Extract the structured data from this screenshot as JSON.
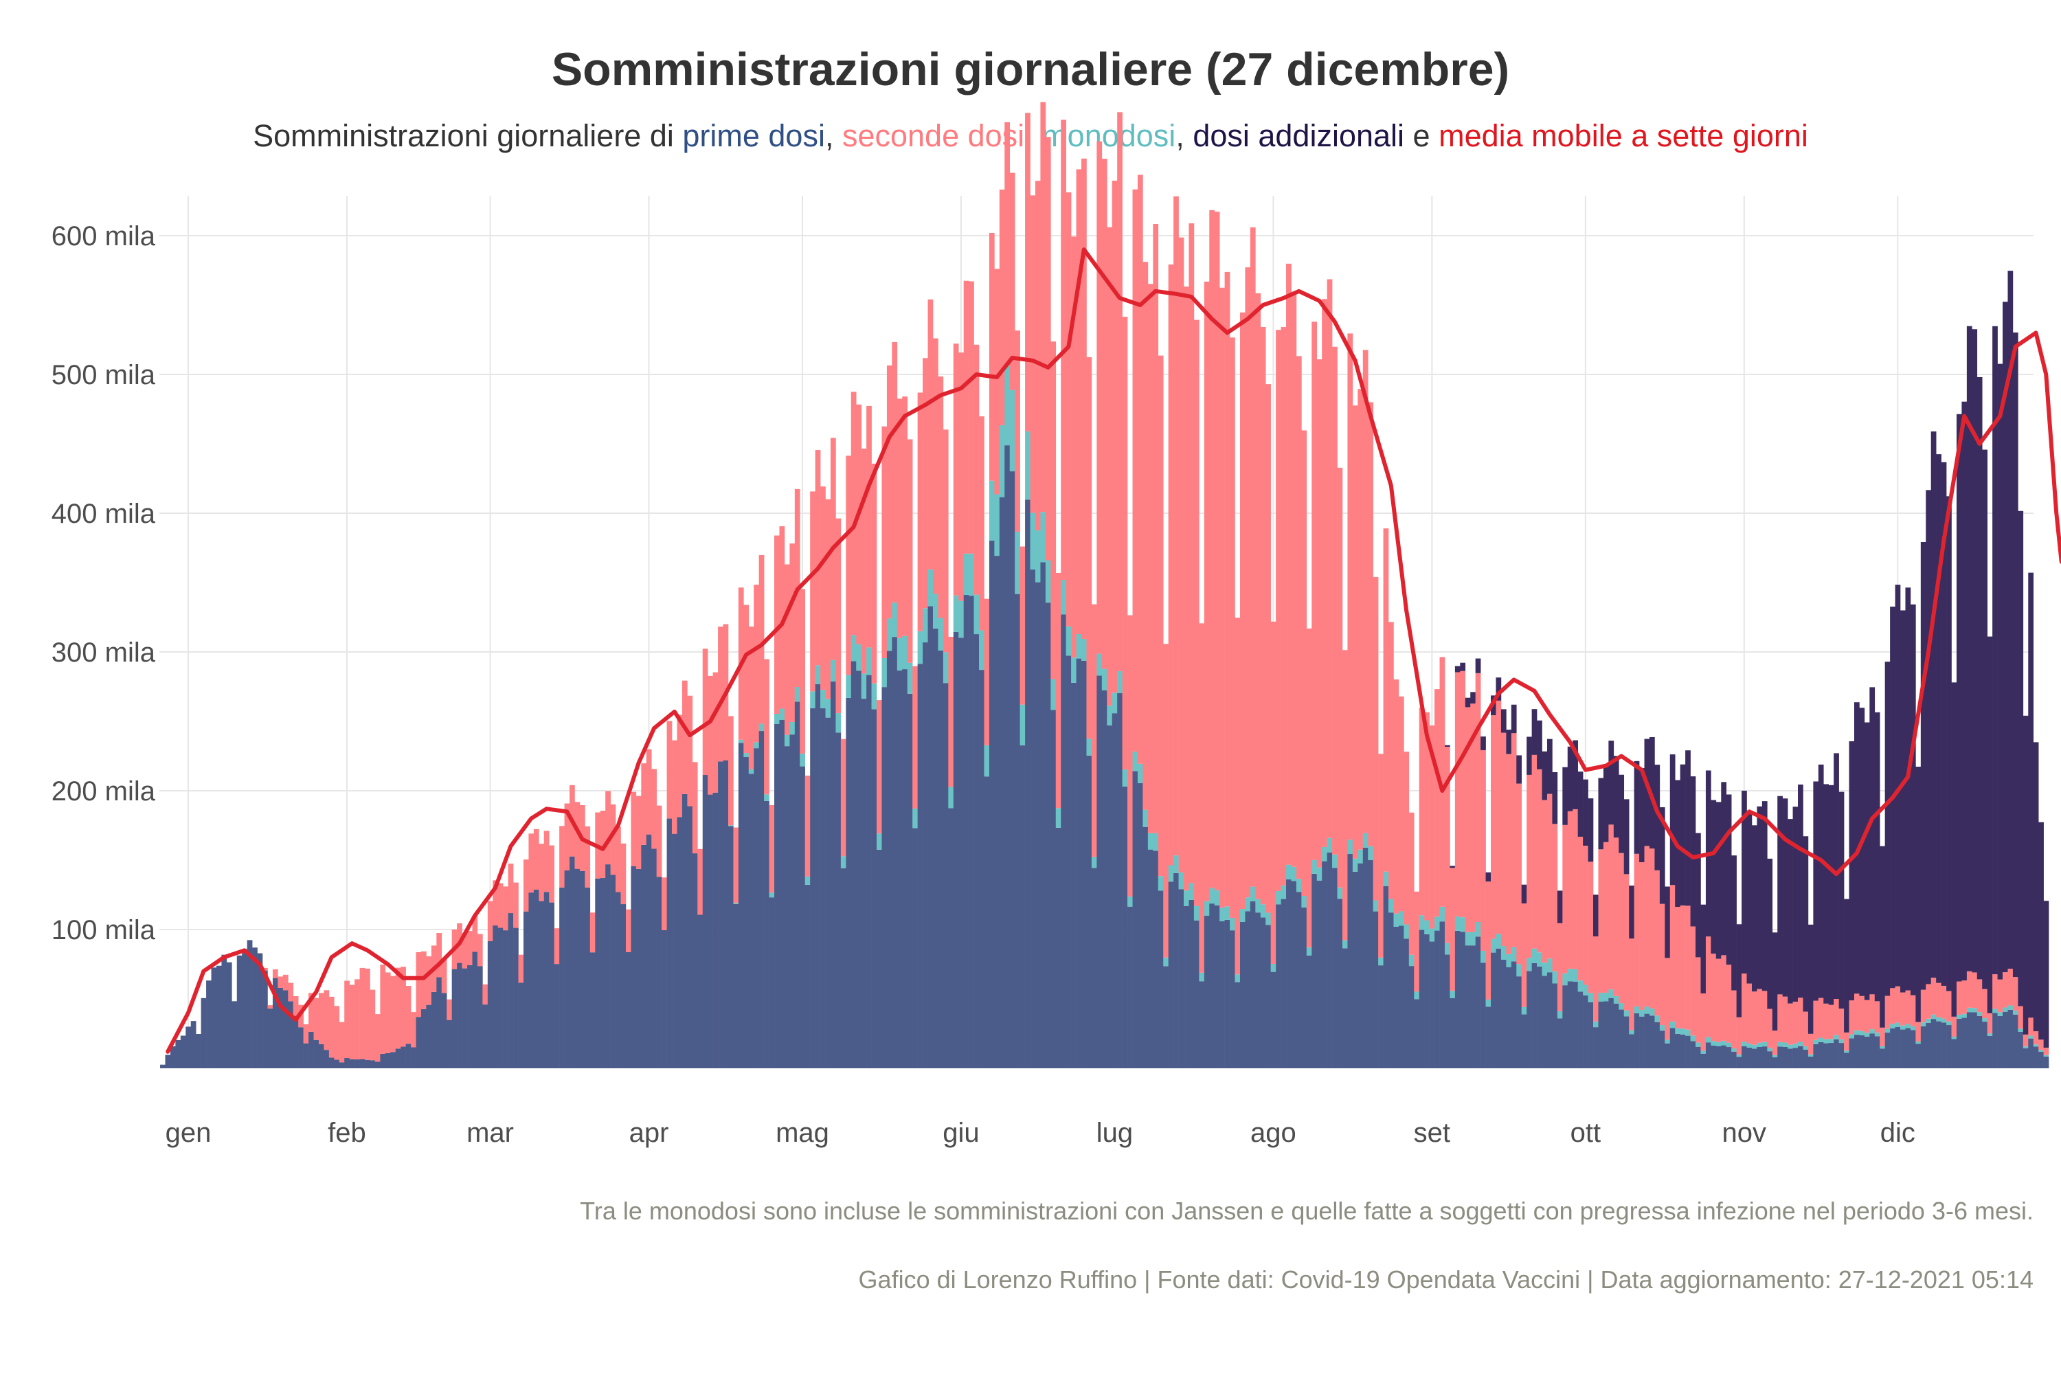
{
  "title": "Somministrazioni giornaliere (27 dicembre)",
  "subtitle": {
    "prefix": "Somministrazioni giornaliere di ",
    "prime": "prime dosi",
    "sep1": ", ",
    "seconde": "seconde dosi",
    "sep2": ", ",
    "monodosi": "monodosi",
    "sep3": ", ",
    "addizionali": "dosi addizionali",
    "and": " e ",
    "media": "media mobile a sette giorni"
  },
  "caption_note": "Tra le monodosi sono incluse le somministrazioni con Janssen e quelle fatte a soggetti con pregressa infezione nel periodo 3-6 mesi.",
  "caption_source": "Gafico di Lorenzo Ruffino | Fonte dati: Covid-19 Opendata Vaccini | Data aggiornamento: 27-12-2021 05:14",
  "colors": {
    "prime": "#4c5c8a",
    "seconde": "#ff8084",
    "monodosi": "#6cc3c6",
    "addizionali": "#3a2c5e",
    "media": "#e0242f",
    "grid": "#e6e6e6",
    "text": "#4d4d4d"
  },
  "chart_data": {
    "type": "bar",
    "stacked": true,
    "note": "Daily stacked bars (one per day, 27 Dec 2020 - 26 Dec 2021) plus 7-day moving average line; values are visual estimates in thousands",
    "units": "mila",
    "ylim": [
      0,
      630
    ],
    "yticks": [
      100,
      200,
      300,
      400,
      500,
      600
    ],
    "ytick_labels": [
      "100 mila",
      "200 mila",
      "300 mila",
      "400 mila",
      "500 mila",
      "600 mila"
    ],
    "months": [
      "gen",
      "feb",
      "mar",
      "apr",
      "mag",
      "giu",
      "lug",
      "ago",
      "set",
      "ott",
      "nov",
      "dic"
    ],
    "grid": true,
    "legend": "subtitle",
    "series_names": [
      "prime dosi",
      "seconde dosi",
      "monodosi",
      "dosi addizionali",
      "media mobile a sette giorni"
    ],
    "anchors": {
      "first_dose": [
        [
          -5,
          5
        ],
        [
          -3,
          15
        ],
        [
          0,
          30
        ],
        [
          7,
          85
        ],
        [
          14,
          88
        ],
        [
          21,
          40
        ],
        [
          28,
          8
        ],
        [
          35,
          6
        ],
        [
          42,
          15
        ],
        [
          49,
          62
        ],
        [
          56,
          80
        ],
        [
          63,
          110
        ],
        [
          70,
          130
        ],
        [
          77,
          150
        ],
        [
          84,
          135
        ],
        [
          91,
          165
        ],
        [
          98,
          190
        ],
        [
          105,
          215
        ],
        [
          112,
          230
        ],
        [
          119,
          250
        ],
        [
          126,
          270
        ],
        [
          133,
          285
        ],
        [
          140,
          300
        ],
        [
          147,
          320
        ],
        [
          154,
          330
        ],
        [
          161,
          440
        ],
        [
          168,
          330
        ],
        [
          175,
          280
        ],
        [
          182,
          255
        ],
        [
          189,
          150
        ],
        [
          196,
          120
        ],
        [
          203,
          110
        ],
        [
          210,
          115
        ],
        [
          217,
          135
        ],
        [
          224,
          150
        ],
        [
          231,
          150
        ],
        [
          238,
          90
        ],
        [
          245,
          100
        ],
        [
          252,
          90
        ],
        [
          259,
          75
        ],
        [
          266,
          70
        ],
        [
          273,
          55
        ],
        [
          280,
          45
        ],
        [
          287,
          35
        ],
        [
          294,
          20
        ],
        [
          301,
          15
        ],
        [
          308,
          15
        ],
        [
          315,
          15
        ],
        [
          322,
          20
        ],
        [
          329,
          25
        ],
        [
          336,
          30
        ],
        [
          343,
          35
        ],
        [
          350,
          40
        ],
        [
          357,
          40
        ],
        [
          359,
          25
        ],
        [
          363,
          8
        ]
      ],
      "second_dose": [
        [
          -5,
          0
        ],
        [
          14,
          0
        ],
        [
          21,
          15
        ],
        [
          28,
          45
        ],
        [
          35,
          65
        ],
        [
          42,
          55
        ],
        [
          49,
          30
        ],
        [
          56,
          25
        ],
        [
          63,
          35
        ],
        [
          70,
          45
        ],
        [
          77,
          50
        ],
        [
          84,
          50
        ],
        [
          91,
          60
        ],
        [
          98,
          80
        ],
        [
          105,
          95
        ],
        [
          112,
          115
        ],
        [
          119,
          135
        ],
        [
          126,
          155
        ],
        [
          133,
          175
        ],
        [
          140,
          180
        ],
        [
          147,
          185
        ],
        [
          154,
          190
        ],
        [
          161,
          160
        ],
        [
          168,
          300
        ],
        [
          175,
          330
        ],
        [
          182,
          380
        ],
        [
          189,
          420
        ],
        [
          196,
          470
        ],
        [
          203,
          470
        ],
        [
          210,
          440
        ],
        [
          217,
          400
        ],
        [
          224,
          380
        ],
        [
          231,
          320
        ],
        [
          238,
          120
        ],
        [
          245,
          170
        ],
        [
          252,
          170
        ],
        [
          259,
          150
        ],
        [
          266,
          120
        ],
        [
          273,
          105
        ],
        [
          280,
          115
        ],
        [
          287,
          110
        ],
        [
          294,
          80
        ],
        [
          301,
          55
        ],
        [
          308,
          35
        ],
        [
          315,
          30
        ],
        [
          322,
          25
        ],
        [
          329,
          25
        ],
        [
          336,
          25
        ],
        [
          343,
          25
        ],
        [
          350,
          25
        ],
        [
          357,
          25
        ],
        [
          359,
          15
        ],
        [
          363,
          5
        ]
      ],
      "monodose": [
        [
          -5,
          0
        ],
        [
          105,
          0
        ],
        [
          112,
          5
        ],
        [
          119,
          10
        ],
        [
          126,
          15
        ],
        [
          133,
          20
        ],
        [
          140,
          25
        ],
        [
          147,
          25
        ],
        [
          154,
          30
        ],
        [
          161,
          60
        ],
        [
          168,
          30
        ],
        [
          175,
          15
        ],
        [
          182,
          15
        ],
        [
          189,
          12
        ],
        [
          196,
          12
        ],
        [
          203,
          10
        ],
        [
          210,
          10
        ],
        [
          217,
          10
        ],
        [
          224,
          10
        ],
        [
          231,
          10
        ],
        [
          238,
          10
        ],
        [
          245,
          10
        ],
        [
          252,
          10
        ],
        [
          259,
          10
        ],
        [
          266,
          10
        ],
        [
          273,
          8
        ],
        [
          280,
          5
        ],
        [
          287,
          5
        ],
        [
          294,
          4
        ],
        [
          301,
          3
        ],
        [
          308,
          3
        ],
        [
          315,
          3
        ],
        [
          322,
          3
        ],
        [
          329,
          3
        ],
        [
          336,
          3
        ],
        [
          343,
          3
        ],
        [
          350,
          3
        ],
        [
          357,
          3
        ],
        [
          363,
          1
        ]
      ],
      "additional": [
        [
          -5,
          0
        ],
        [
          245,
          0
        ],
        [
          252,
          10
        ],
        [
          259,
          20
        ],
        [
          266,
          40
        ],
        [
          273,
          50
        ],
        [
          280,
          60
        ],
        [
          287,
          80
        ],
        [
          294,
          110
        ],
        [
          301,
          120
        ],
        [
          308,
          130
        ],
        [
          315,
          145
        ],
        [
          322,
          170
        ],
        [
          329,
          220
        ],
        [
          336,
          300
        ],
        [
          343,
          400
        ],
        [
          350,
          460
        ],
        [
          357,
          480
        ],
        [
          359,
          400
        ],
        [
          361,
          220
        ],
        [
          363,
          100
        ]
      ],
      "moving_avg": [
        [
          -4,
          12
        ],
        [
          0,
          40
        ],
        [
          3,
          70
        ],
        [
          7,
          80
        ],
        [
          11,
          85
        ],
        [
          14,
          75
        ],
        [
          18,
          45
        ],
        [
          21,
          35
        ],
        [
          25,
          55
        ],
        [
          28,
          80
        ],
        [
          32,
          90
        ],
        [
          35,
          85
        ],
        [
          39,
          75
        ],
        [
          42,
          65
        ],
        [
          46,
          65
        ],
        [
          49,
          75
        ],
        [
          53,
          90
        ],
        [
          56,
          110
        ],
        [
          60,
          130
        ],
        [
          63,
          160
        ],
        [
          67,
          180
        ],
        [
          70,
          187
        ],
        [
          74,
          185
        ],
        [
          77,
          165
        ],
        [
          81,
          158
        ],
        [
          84,
          175
        ],
        [
          88,
          220
        ],
        [
          91,
          245
        ],
        [
          95,
          257
        ],
        [
          98,
          240
        ],
        [
          102,
          250
        ],
        [
          105,
          270
        ],
        [
          109,
          298
        ],
        [
          112,
          305
        ],
        [
          116,
          320
        ],
        [
          119,
          345
        ],
        [
          123,
          360
        ],
        [
          126,
          375
        ],
        [
          130,
          390
        ],
        [
          133,
          420
        ],
        [
          137,
          455
        ],
        [
          140,
          470
        ],
        [
          144,
          478
        ],
        [
          147,
          485
        ],
        [
          151,
          490
        ],
        [
          154,
          500
        ],
        [
          158,
          498
        ],
        [
          161,
          512
        ],
        [
          165,
          510
        ],
        [
          168,
          505
        ],
        [
          172,
          520
        ],
        [
          175,
          590
        ],
        [
          179,
          570
        ],
        [
          182,
          555
        ],
        [
          186,
          550
        ],
        [
          189,
          560
        ],
        [
          193,
          558
        ],
        [
          196,
          556
        ],
        [
          200,
          540
        ],
        [
          203,
          530
        ],
        [
          207,
          540
        ],
        [
          210,
          550
        ],
        [
          214,
          555
        ],
        [
          217,
          560
        ],
        [
          221,
          553
        ],
        [
          224,
          538
        ],
        [
          228,
          510
        ],
        [
          231,
          470
        ],
        [
          235,
          420
        ],
        [
          238,
          330
        ],
        [
          242,
          240
        ],
        [
          245,
          200
        ],
        [
          249,
          225
        ],
        [
          252,
          245
        ],
        [
          256,
          270
        ],
        [
          259,
          280
        ],
        [
          263,
          272
        ],
        [
          266,
          255
        ],
        [
          270,
          235
        ],
        [
          273,
          215
        ],
        [
          277,
          218
        ],
        [
          280,
          225
        ],
        [
          284,
          215
        ],
        [
          287,
          185
        ],
        [
          291,
          160
        ],
        [
          294,
          152
        ],
        [
          298,
          155
        ],
        [
          301,
          170
        ],
        [
          305,
          185
        ],
        [
          308,
          180
        ],
        [
          312,
          165
        ],
        [
          315,
          158
        ],
        [
          319,
          150
        ],
        [
          322,
          140
        ],
        [
          326,
          155
        ],
        [
          329,
          180
        ],
        [
          333,
          195
        ],
        [
          336,
          210
        ],
        [
          340,
          300
        ],
        [
          343,
          380
        ],
        [
          347,
          470
        ],
        [
          350,
          450
        ],
        [
          354,
          470
        ],
        [
          357,
          520
        ],
        [
          361,
          530
        ],
        [
          363,
          500
        ],
        [
          365,
          400
        ],
        [
          366,
          365
        ]
      ]
    }
  }
}
